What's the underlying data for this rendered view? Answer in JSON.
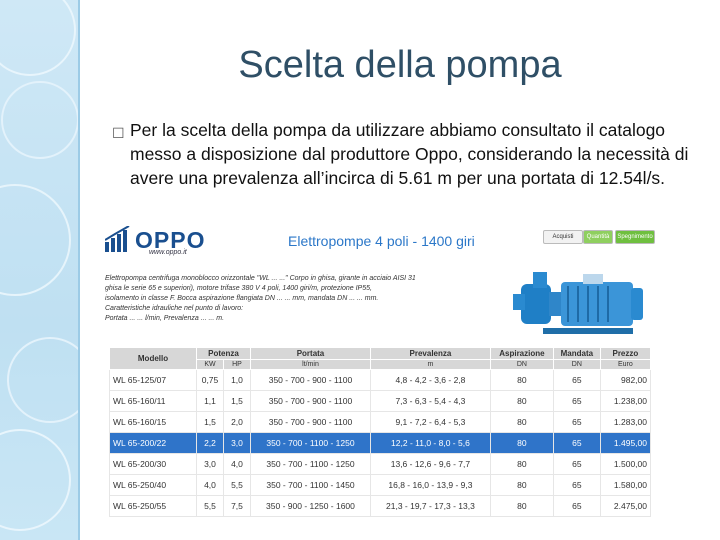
{
  "slide": {
    "title": "Scelta della pompa",
    "bullet_icon": "unknown-glyph-box",
    "bullet_text": "Per la scelta della pompa da utilizzare abbiamo consultato il catalogo messo a disposizione dal produttore Oppo, considerando la necessità di avere una prevalenza all’incirca di 5.61 m per una portata di 12.54l/s."
  },
  "catalog": {
    "logo": "OPPO",
    "logo_url": "www.oppo.it",
    "title": "Elettropompe 4 poli - 1400 giri",
    "buttons": [
      "Acquisti",
      "Quantità",
      "Spegnimento"
    ],
    "description": [
      "Elettropompa centrifuga monoblocco orizzontale \"WL ... ...\" Corpo in ghisa, girante in acciaio AISI 316 (in",
      "ghisa le serie 65 e superiori), motore trifase 380 V 4 poli, 1400 giri/m, protezione IP55,",
      "isolamento in classe F. Bocca aspirazione flangiata DN ... ... mm, mandata DN ... ... mm.",
      "Caratteristiche idrauliche nel punto di lavoro:",
      "Portata ... ... l/min, Prevalenza ... ... m."
    ],
    "table": {
      "headers": {
        "modello": "Modello",
        "potenza": "Potenza",
        "portata": "Portata",
        "prevalenza": "Prevalenza",
        "aspirazione": "Aspirazione",
        "mandata": "Mandata",
        "prezzo": "Prezzo"
      },
      "subheaders": {
        "kw": "KW",
        "hp": "HP",
        "portata_unit": "lt/min",
        "prevalenza_unit": "m",
        "aspirazione_unit": "DN",
        "mandata_unit": "DN",
        "prezzo_unit": "Euro"
      },
      "rows": [
        {
          "modello": "WL 65-125/07",
          "kw": "0,75",
          "hp": "1,0",
          "portata": "350 - 700 - 900 - 1100",
          "prevalenza": "4,8 - 4,2 - 3,6 - 2,8",
          "aspirazione": "80",
          "mandata": "65",
          "prezzo": "982,00",
          "highlight": false
        },
        {
          "modello": "WL 65-160/11",
          "kw": "1,1",
          "hp": "1,5",
          "portata": "350 - 700 - 900 - 1100",
          "prevalenza": "7,3 - 6,3 - 5,4 - 4,3",
          "aspirazione": "80",
          "mandata": "65",
          "prezzo": "1.238,00",
          "highlight": false
        },
        {
          "modello": "WL 65-160/15",
          "kw": "1,5",
          "hp": "2,0",
          "portata": "350 - 700 - 900 - 1100",
          "prevalenza": "9,1 - 7,2 - 6,4 - 5,3",
          "aspirazione": "80",
          "mandata": "65",
          "prezzo": "1.283,00",
          "highlight": false
        },
        {
          "modello": "WL 65-200/22",
          "kw": "2,2",
          "hp": "3,0",
          "portata": "350 - 700 - 1100 - 1250",
          "prevalenza": "12,2 - 11,0 - 8,0 - 5,6",
          "aspirazione": "80",
          "mandata": "65",
          "prezzo": "1.495,00",
          "highlight": true
        },
        {
          "modello": "WL 65-200/30",
          "kw": "3,0",
          "hp": "4,0",
          "portata": "350 - 700 - 1100 - 1250",
          "prevalenza": "13,6 - 12,6 - 9,6 - 7,7",
          "aspirazione": "80",
          "mandata": "65",
          "prezzo": "1.500,00",
          "highlight": false
        },
        {
          "modello": "WL 65-250/40",
          "kw": "4,0",
          "hp": "5,5",
          "portata": "350 - 700 - 1100 - 1450",
          "prevalenza": "16,8 - 16,0 - 13,9 - 9,3",
          "aspirazione": "80",
          "mandata": "65",
          "prezzo": "1.580,00",
          "highlight": false
        },
        {
          "modello": "WL 65-250/55",
          "kw": "5,5",
          "hp": "7,5",
          "portata": "350 - 900 - 1250 - 1600",
          "prevalenza": "21,3 - 19,7 - 17,3 - 13,3",
          "aspirazione": "80",
          "mandata": "65",
          "prezzo": "2.475,00",
          "highlight": false
        }
      ]
    }
  }
}
